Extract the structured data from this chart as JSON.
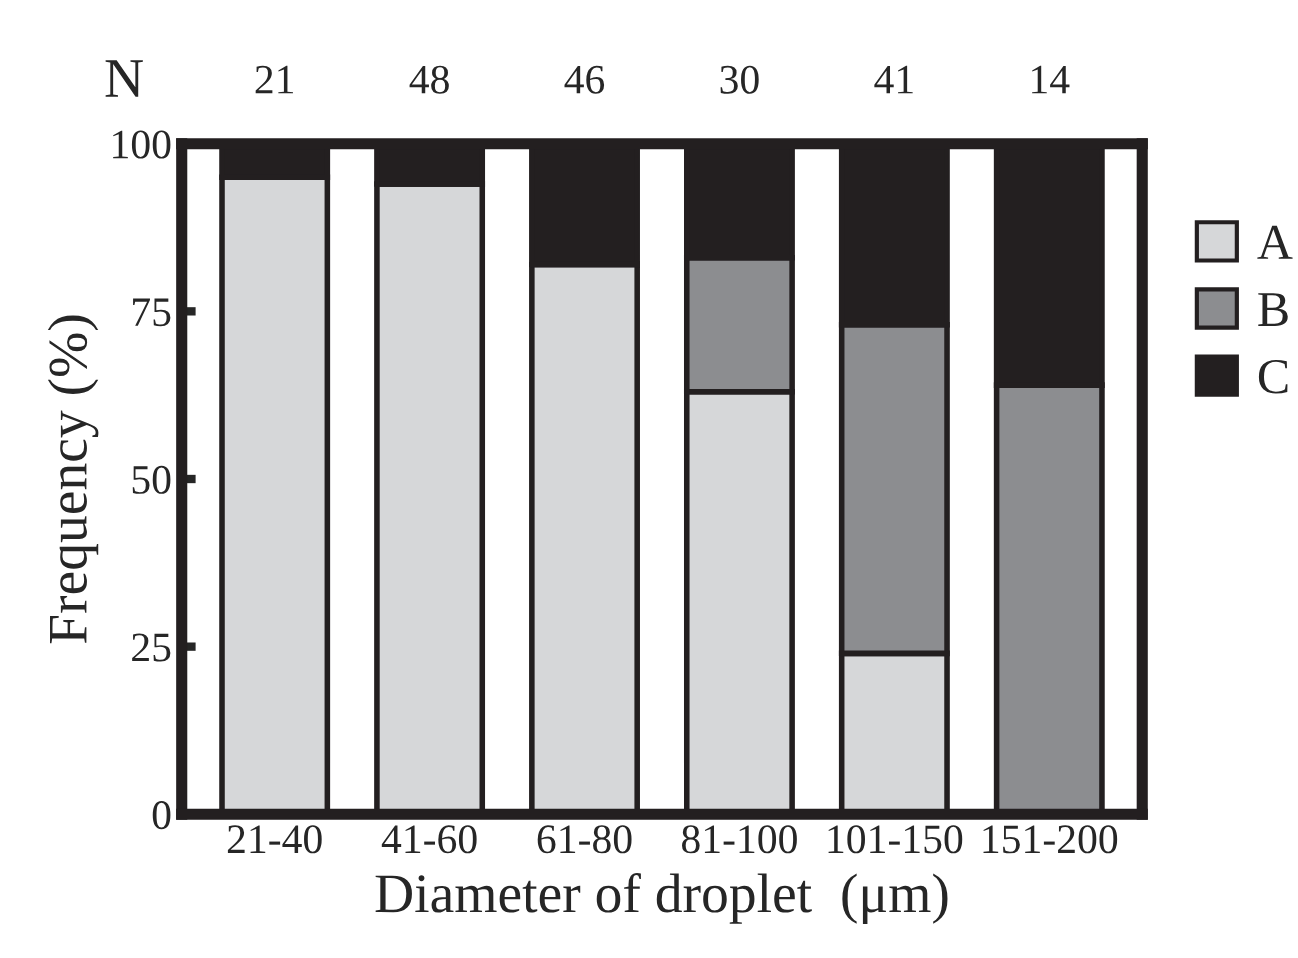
{
  "chart_data": {
    "type": "bar",
    "stacked": true,
    "xlabel": "Diameter of droplet  (μm)",
    "ylabel": "Frequency (%)",
    "categories": [
      "21-40",
      "41-60",
      "61-80",
      "81-100",
      "101-150",
      "151-200"
    ],
    "series": [
      {
        "name": "A",
        "color": "#d6d7d9",
        "values": [
          95,
          94,
          82,
          63,
          24,
          0
        ]
      },
      {
        "name": "B",
        "color": "#8c8d90",
        "values": [
          0,
          0,
          0,
          20,
          49,
          64
        ]
      },
      {
        "name": "C",
        "color": "#231f20",
        "values": [
          5,
          6,
          18,
          17,
          27,
          36
        ]
      }
    ],
    "ylim": [
      0,
      100
    ],
    "yticks": [
      0,
      25,
      50,
      75,
      100
    ],
    "grid": false,
    "legend": "right",
    "annotations": [
      "N",
      "21",
      "48",
      "46",
      "30",
      "41",
      "14"
    ]
  }
}
